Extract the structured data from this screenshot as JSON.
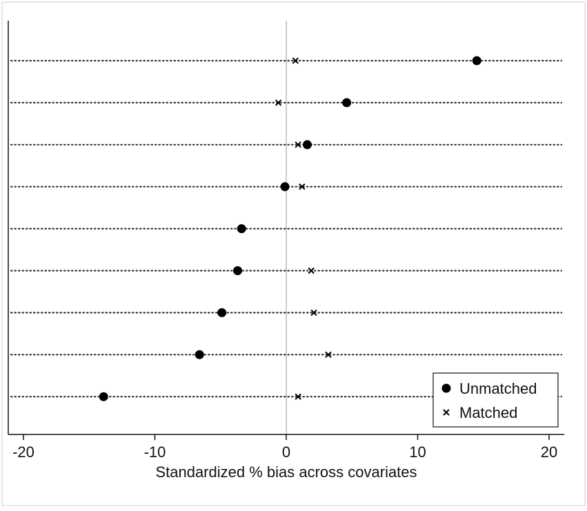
{
  "chart_data": {
    "type": "scatter",
    "title": "",
    "xlabel": "Standardized % bias across covariates",
    "ylabel": "",
    "xlim": [
      -21,
      21
    ],
    "xticks": [
      -20,
      -10,
      0,
      10,
      20
    ],
    "x_tick_labels": [
      "-20",
      "-10",
      "0",
      "10",
      "20"
    ],
    "grid": "dotted horizontal line per covariate row",
    "reference_line_x": 0,
    "legend_position": "bottom-right",
    "series": [
      {
        "name": "Unmatched",
        "marker": "filled-circle",
        "values": [
          14.5,
          4.6,
          1.6,
          -0.1,
          -3.4,
          -3.7,
          -4.9,
          -6.6,
          -13.9
        ]
      },
      {
        "name": "Matched",
        "marker": "x-cross",
        "values": [
          0.7,
          -0.6,
          0.9,
          1.2,
          null,
          1.9,
          2.1,
          3.2,
          0.9
        ]
      }
    ]
  },
  "colors": {
    "marker": "#000000",
    "axis": "#111111",
    "grid": "#333333",
    "reference_line": "#999999",
    "background": "#ffffff"
  }
}
